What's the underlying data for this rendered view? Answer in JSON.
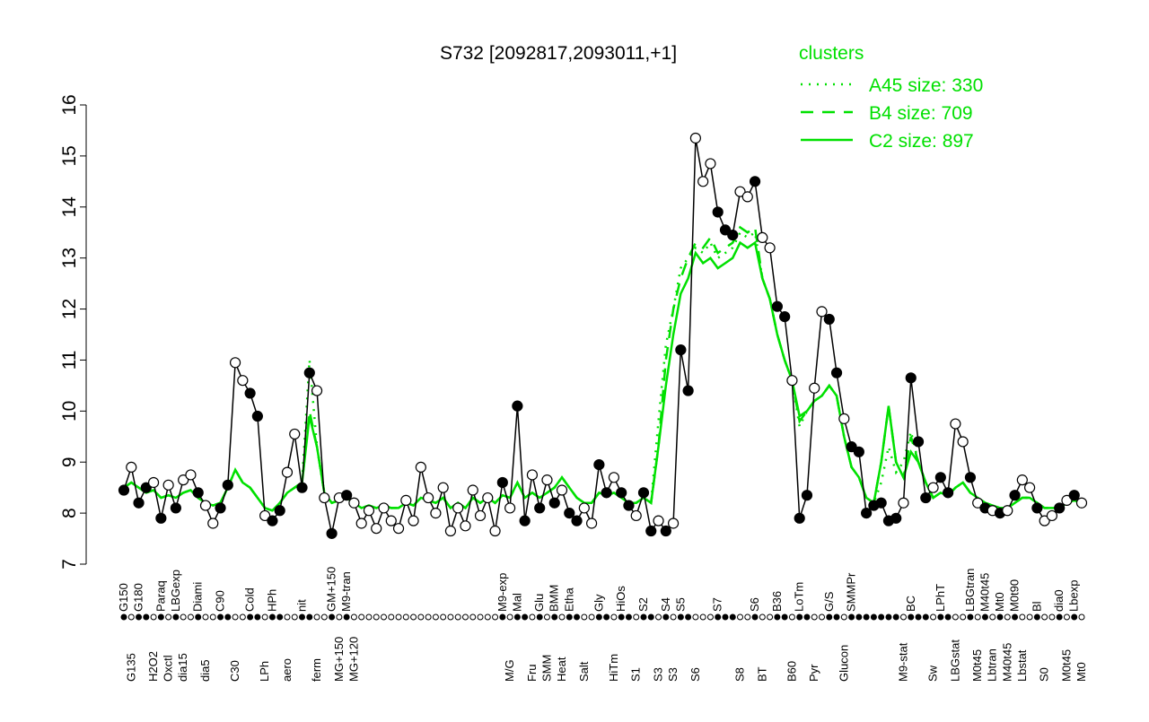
{
  "chart_data": {
    "type": "line",
    "title": "S732 [2092817,2093011,+1]",
    "legend_title": "clusters",
    "categories": [
      "G150",
      "G135",
      "G180",
      null,
      "H2O2",
      "Paraq",
      "Oxctl",
      "LBGexp",
      "dia15",
      null,
      "Diami",
      "dia5",
      null,
      "C90",
      null,
      "C30",
      null,
      "Cold",
      null,
      "LPh",
      "HPh",
      null,
      "aero",
      null,
      "nit",
      null,
      "ferm",
      null,
      "GM+150",
      "MG+150",
      "M9-tran",
      "MG+120",
      null,
      null,
      null,
      null,
      null,
      null,
      null,
      null,
      null,
      null,
      null,
      null,
      null,
      null,
      null,
      null,
      null,
      null,
      null,
      "M9-exp",
      "M/G",
      "Mal",
      null,
      "Fru",
      "Glu",
      "SMM",
      "BMM",
      "Heat",
      "Etha",
      null,
      "Salt",
      null,
      "Gly",
      null,
      "HiTm",
      "HiOs",
      null,
      "S1",
      "S2",
      null,
      "S3",
      "S4",
      "S3",
      "S5",
      null,
      "S6",
      null,
      null,
      "S7",
      null,
      null,
      "S8",
      null,
      "S6",
      "BT",
      null,
      "B36",
      null,
      "B60",
      "LoTm",
      null,
      "Pyr",
      null,
      "G/S",
      null,
      "Glucon",
      "SMMPr",
      null,
      null,
      null,
      null,
      null,
      null,
      "M9-stat",
      "BC",
      null,
      null,
      "Sw",
      "LPhT",
      null,
      "LBGstat",
      null,
      "LBGtran",
      "M0t45",
      "M40t45",
      "Lbtran",
      "Mt0",
      "M40t45",
      "M0t90",
      "Lbstat",
      null,
      "Bl",
      "S0",
      null,
      "dia0",
      "M0t45",
      "Lbexp",
      "Mt0"
    ],
    "values": [
      8.45,
      8.9,
      8.2,
      8.5,
      8.6,
      7.9,
      8.55,
      8.1,
      8.65,
      8.75,
      8.4,
      8.15,
      7.8,
      8.1,
      8.55,
      10.95,
      10.6,
      10.35,
      9.9,
      7.95,
      7.85,
      8.05,
      8.8,
      9.55,
      8.5,
      10.75,
      10.4,
      8.3,
      7.6,
      8.3,
      8.35,
      8.2,
      7.8,
      8.05,
      7.7,
      8.1,
      7.85,
      7.7,
      8.25,
      7.85,
      8.9,
      8.3,
      8.0,
      8.5,
      7.65,
      8.1,
      7.75,
      8.45,
      7.95,
      8.3,
      7.65,
      8.6,
      8.1,
      10.1,
      7.85,
      8.75,
      8.1,
      8.65,
      8.2,
      8.45,
      8.0,
      7.85,
      8.1,
      7.8,
      8.95,
      8.4,
      8.7,
      8.4,
      8.15,
      7.95,
      8.4,
      7.65,
      7.85,
      7.65,
      7.8,
      11.2,
      10.4,
      15.35,
      14.5,
      14.85,
      13.9,
      13.55,
      13.45,
      14.3,
      14.2,
      14.5,
      13.4,
      13.2,
      12.05,
      11.85,
      10.6,
      7.9,
      8.35,
      10.45,
      11.95,
      11.8,
      10.75,
      9.85,
      9.3,
      9.2,
      8.0,
      8.15,
      8.2,
      7.85,
      7.9,
      8.2,
      10.65,
      9.4,
      8.3,
      8.5,
      8.7,
      8.4,
      9.75,
      9.4,
      8.7,
      8.2,
      8.1,
      8.05,
      8.0,
      8.05,
      8.35,
      8.65,
      8.5,
      8.1,
      7.85,
      7.95,
      8.1,
      8.25,
      8.35,
      8.2
    ],
    "marker_colors": [
      "#000000",
      "#ffffff"
    ],
    "color": "#000000",
    "series": [
      {
        "name": "A45 size: 330",
        "style": "dotted",
        "color": "#00e000",
        "values": [
          8.5,
          8.6,
          8.5,
          8.4,
          8.45,
          8.3,
          8.35,
          8.3,
          8.4,
          8.45,
          8.3,
          8.2,
          8.15,
          8.2,
          8.5,
          8.85,
          8.6,
          8.5,
          8.3,
          8.1,
          8.05,
          8.2,
          8.4,
          8.5,
          8.6,
          11.0,
          9.3,
          8.4,
          8.2,
          8.25,
          8.3,
          8.2,
          8.1,
          8.15,
          8.1,
          8.15,
          8.1,
          8.1,
          8.2,
          8.15,
          8.3,
          8.25,
          8.2,
          8.3,
          8.1,
          8.2,
          8.1,
          8.3,
          8.2,
          8.3,
          8.2,
          8.35,
          8.3,
          8.6,
          8.3,
          8.4,
          8.3,
          8.4,
          8.5,
          8.7,
          8.5,
          8.3,
          8.2,
          8.2,
          8.4,
          8.35,
          8.4,
          8.3,
          8.2,
          8.2,
          8.3,
          8.2,
          9.8,
          11.3,
          12.0,
          12.8,
          13.0,
          13.2,
          13.1,
          13.3,
          13.0,
          13.1,
          13.2,
          13.5,
          13.4,
          13.5,
          12.6,
          12.2,
          11.5,
          11.0,
          10.6,
          9.7,
          10.0,
          10.2,
          10.3,
          10.5,
          10.3,
          9.5,
          8.9,
          8.7,
          8.3,
          8.2,
          8.6,
          9.3,
          8.8,
          9.0,
          9.6,
          9.0,
          8.6,
          8.3,
          8.4,
          8.35,
          8.5,
          8.6,
          8.4,
          8.3,
          8.2,
          8.15,
          8.1,
          8.1,
          8.2,
          8.3,
          8.3,
          8.2,
          8.1,
          8.1,
          8.1,
          8.2,
          8.25,
          8.2
        ]
      },
      {
        "name": "B4 size: 709",
        "style": "dashed",
        "color": "#00e000",
        "values": [
          8.5,
          8.6,
          8.5,
          8.4,
          8.45,
          8.3,
          8.35,
          8.3,
          8.4,
          8.45,
          8.3,
          8.2,
          8.15,
          8.2,
          8.5,
          8.85,
          8.6,
          8.5,
          8.3,
          8.1,
          8.05,
          8.2,
          8.4,
          8.5,
          8.6,
          10.0,
          9.3,
          8.4,
          8.2,
          8.25,
          8.3,
          8.2,
          8.1,
          8.15,
          8.1,
          8.15,
          8.1,
          8.1,
          8.2,
          8.15,
          8.3,
          8.25,
          8.2,
          8.3,
          8.1,
          8.2,
          8.1,
          8.3,
          8.2,
          8.3,
          8.2,
          8.35,
          8.3,
          8.6,
          8.3,
          8.4,
          8.3,
          8.4,
          8.5,
          8.7,
          8.5,
          8.3,
          8.2,
          8.2,
          8.4,
          8.35,
          8.4,
          8.3,
          8.2,
          8.2,
          8.3,
          8.2,
          9.3,
          11.0,
          12.0,
          12.6,
          13.0,
          13.3,
          13.2,
          13.4,
          13.1,
          13.2,
          13.3,
          13.6,
          13.5,
          13.6,
          12.6,
          12.2,
          11.5,
          11.0,
          10.6,
          9.8,
          10.0,
          10.2,
          10.3,
          10.5,
          10.3,
          9.5,
          8.9,
          8.7,
          8.3,
          8.2,
          9.0,
          10.1,
          9.0,
          8.7,
          9.5,
          9.0,
          8.6,
          8.3,
          8.4,
          8.35,
          8.5,
          8.6,
          8.4,
          8.3,
          8.2,
          8.15,
          8.1,
          8.1,
          8.2,
          8.3,
          8.3,
          8.2,
          8.1,
          8.1,
          8.1,
          8.2,
          8.25,
          8.2
        ]
      },
      {
        "name": "C2 size: 897",
        "style": "solid",
        "color": "#00e000",
        "values": [
          8.5,
          8.6,
          8.5,
          8.4,
          8.45,
          8.3,
          8.35,
          8.3,
          8.4,
          8.45,
          8.3,
          8.2,
          8.15,
          8.2,
          8.5,
          8.85,
          8.6,
          8.5,
          8.3,
          8.1,
          8.05,
          8.2,
          8.4,
          8.5,
          8.6,
          9.9,
          9.3,
          8.4,
          8.2,
          8.25,
          8.3,
          8.2,
          8.1,
          8.15,
          8.1,
          8.15,
          8.1,
          8.1,
          8.2,
          8.15,
          8.3,
          8.25,
          8.2,
          8.3,
          8.1,
          8.2,
          8.1,
          8.3,
          8.2,
          8.3,
          8.2,
          8.35,
          8.3,
          8.6,
          8.3,
          8.4,
          8.3,
          8.4,
          8.5,
          8.7,
          8.5,
          8.3,
          8.2,
          8.2,
          8.4,
          8.35,
          8.4,
          8.3,
          8.2,
          8.2,
          8.3,
          8.2,
          9.3,
          10.5,
          11.5,
          12.3,
          12.6,
          13.1,
          12.9,
          13.0,
          12.8,
          12.9,
          13.0,
          13.3,
          13.2,
          13.3,
          12.6,
          12.2,
          11.5,
          11.0,
          10.6,
          9.9,
          10.0,
          10.2,
          10.3,
          10.5,
          10.3,
          9.5,
          8.9,
          8.7,
          8.3,
          8.2,
          9.0,
          10.1,
          9.0,
          8.7,
          9.2,
          9.0,
          8.6,
          8.3,
          8.4,
          8.35,
          8.5,
          8.6,
          8.4,
          8.3,
          8.2,
          8.15,
          8.1,
          8.1,
          8.2,
          8.3,
          8.3,
          8.2,
          8.1,
          8.1,
          8.1,
          8.2,
          8.25,
          8.2
        ]
      }
    ],
    "ylim": [
      7,
      16
    ],
    "yticks": [
      7,
      8,
      9,
      10,
      11,
      12,
      13,
      14,
      15,
      16
    ],
    "grid": false,
    "legend": "top-right"
  }
}
